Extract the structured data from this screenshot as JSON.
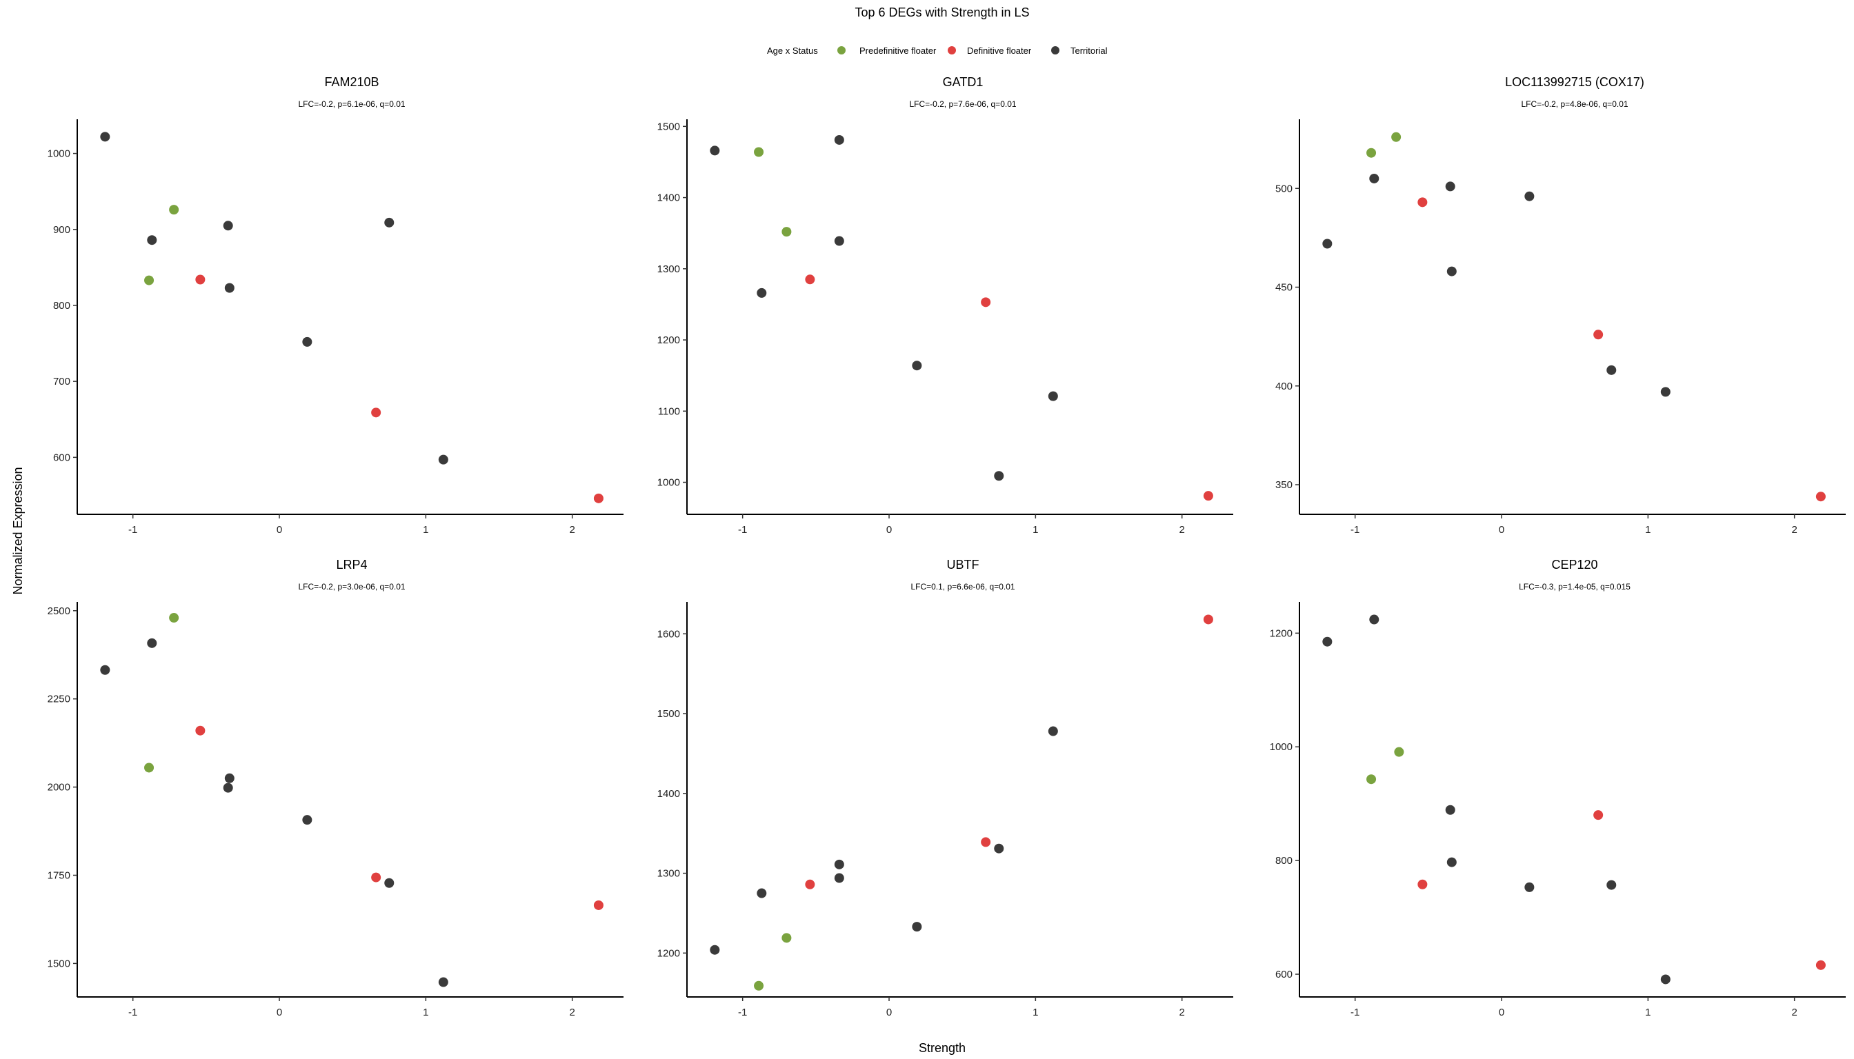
{
  "chart_data": {
    "type": "scatter",
    "title": "Top 6 DEGs with Strength in LS",
    "xlabel": "Strength",
    "ylabel": "Normalized Expression",
    "legend": {
      "title": "Age x Status",
      "placement": "top",
      "entries": [
        {
          "name": "Predefinitive floater",
          "color": "#7aa33f"
        },
        {
          "name": "Definitive floater",
          "color": "#e0403f"
        },
        {
          "name": "Territorial",
          "color": "#3a3a3a"
        }
      ]
    },
    "grid": false,
    "xlim": [
      -1.38,
      2.35
    ],
    "xticks": [
      -1,
      0,
      1,
      2
    ],
    "panels": [
      {
        "title": "FAM210B",
        "subtitle": "LFC=-0.2, p=6.1e-06, q=0.01",
        "ylim": [
          525,
          1045
        ],
        "yticks": [
          600,
          700,
          800,
          900,
          1000
        ],
        "points": [
          {
            "x": -1.19,
            "y": 1022,
            "group": "Territorial"
          },
          {
            "x": -0.72,
            "y": 926,
            "group": "Predefinitive floater"
          },
          {
            "x": -0.87,
            "y": 886,
            "group": "Territorial"
          },
          {
            "x": -0.35,
            "y": 905,
            "group": "Territorial"
          },
          {
            "x": 0.75,
            "y": 909,
            "group": "Territorial"
          },
          {
            "x": -0.89,
            "y": 833,
            "group": "Predefinitive floater"
          },
          {
            "x": -0.54,
            "y": 834,
            "group": "Definitive floater"
          },
          {
            "x": -0.34,
            "y": 823,
            "group": "Territorial"
          },
          {
            "x": 0.19,
            "y": 752,
            "group": "Territorial"
          },
          {
            "x": 0.66,
            "y": 659,
            "group": "Definitive floater"
          },
          {
            "x": 1.12,
            "y": 597,
            "group": "Territorial"
          },
          {
            "x": 2.18,
            "y": 546,
            "group": "Definitive floater"
          }
        ]
      },
      {
        "title": "GATD1",
        "subtitle": "LFC=-0.2, p=7.6e-06, q=0.01",
        "ylim": [
          955,
          1510
        ],
        "yticks": [
          1000,
          1100,
          1200,
          1300,
          1400,
          1500
        ],
        "points": [
          {
            "x": -1.19,
            "y": 1466,
            "group": "Territorial"
          },
          {
            "x": -0.89,
            "y": 1464,
            "group": "Predefinitive floater"
          },
          {
            "x": -0.34,
            "y": 1481,
            "group": "Territorial"
          },
          {
            "x": -0.7,
            "y": 1352,
            "group": "Predefinitive floater"
          },
          {
            "x": -0.34,
            "y": 1339,
            "group": "Territorial"
          },
          {
            "x": -0.54,
            "y": 1285,
            "group": "Definitive floater"
          },
          {
            "x": -0.87,
            "y": 1266,
            "group": "Territorial"
          },
          {
            "x": 0.66,
            "y": 1253,
            "group": "Definitive floater"
          },
          {
            "x": 0.19,
            "y": 1164,
            "group": "Territorial"
          },
          {
            "x": 1.12,
            "y": 1121,
            "group": "Territorial"
          },
          {
            "x": 0.75,
            "y": 1009,
            "group": "Territorial"
          },
          {
            "x": 2.18,
            "y": 981,
            "group": "Definitive floater"
          }
        ]
      },
      {
        "title": "LOC113992715 (COX17)",
        "subtitle": "LFC=-0.2, p=4.8e-06, q=0.01",
        "ylim": [
          335,
          535
        ],
        "yticks": [
          350,
          400,
          450,
          500
        ],
        "points": [
          {
            "x": -0.72,
            "y": 526,
            "group": "Predefinitive floater"
          },
          {
            "x": -0.89,
            "y": 518,
            "group": "Predefinitive floater"
          },
          {
            "x": -0.87,
            "y": 505,
            "group": "Territorial"
          },
          {
            "x": -0.35,
            "y": 501,
            "group": "Territorial"
          },
          {
            "x": 0.19,
            "y": 496,
            "group": "Territorial"
          },
          {
            "x": -0.54,
            "y": 493,
            "group": "Definitive floater"
          },
          {
            "x": -1.19,
            "y": 472,
            "group": "Territorial"
          },
          {
            "x": -0.34,
            "y": 458,
            "group": "Territorial"
          },
          {
            "x": 0.66,
            "y": 426,
            "group": "Definitive floater"
          },
          {
            "x": 0.75,
            "y": 408,
            "group": "Territorial"
          },
          {
            "x": 1.12,
            "y": 397,
            "group": "Territorial"
          },
          {
            "x": 2.18,
            "y": 344,
            "group": "Definitive floater"
          }
        ]
      },
      {
        "title": "LRP4",
        "subtitle": "LFC=-0.2, p=3.0e-06, q=0.01",
        "ylim": [
          1405,
          2525
        ],
        "yticks": [
          1500,
          1750,
          2000,
          2250,
          2500
        ],
        "points": [
          {
            "x": -0.72,
            "y": 2480,
            "group": "Predefinitive floater"
          },
          {
            "x": -0.87,
            "y": 2408,
            "group": "Territorial"
          },
          {
            "x": -1.19,
            "y": 2332,
            "group": "Territorial"
          },
          {
            "x": -0.54,
            "y": 2160,
            "group": "Definitive floater"
          },
          {
            "x": -0.89,
            "y": 2055,
            "group": "Predefinitive floater"
          },
          {
            "x": -0.34,
            "y": 2025,
            "group": "Territorial"
          },
          {
            "x": -0.35,
            "y": 1998,
            "group": "Territorial"
          },
          {
            "x": 0.19,
            "y": 1907,
            "group": "Territorial"
          },
          {
            "x": 0.66,
            "y": 1744,
            "group": "Definitive floater"
          },
          {
            "x": 0.75,
            "y": 1728,
            "group": "Territorial"
          },
          {
            "x": 2.18,
            "y": 1665,
            "group": "Definitive floater"
          },
          {
            "x": 1.12,
            "y": 1447,
            "group": "Territorial"
          }
        ]
      },
      {
        "title": "UBTF",
        "subtitle": "LFC=0.1, p=6.6e-06, q=0.01",
        "ylim": [
          1145,
          1640
        ],
        "yticks": [
          1200,
          1300,
          1400,
          1500,
          1600
        ],
        "points": [
          {
            "x": 2.18,
            "y": 1618,
            "group": "Definitive floater"
          },
          {
            "x": 1.12,
            "y": 1478,
            "group": "Territorial"
          },
          {
            "x": 0.66,
            "y": 1339,
            "group": "Definitive floater"
          },
          {
            "x": 0.75,
            "y": 1331,
            "group": "Territorial"
          },
          {
            "x": -0.34,
            "y": 1311,
            "group": "Territorial"
          },
          {
            "x": -0.34,
            "y": 1294,
            "group": "Territorial"
          },
          {
            "x": -0.54,
            "y": 1286,
            "group": "Definitive floater"
          },
          {
            "x": -0.87,
            "y": 1275,
            "group": "Territorial"
          },
          {
            "x": 0.19,
            "y": 1233,
            "group": "Territorial"
          },
          {
            "x": -0.7,
            "y": 1219,
            "group": "Predefinitive floater"
          },
          {
            "x": -1.19,
            "y": 1204,
            "group": "Territorial"
          },
          {
            "x": -0.89,
            "y": 1159,
            "group": "Predefinitive floater"
          }
        ]
      },
      {
        "title": "CEP120",
        "subtitle": "LFC=-0.3, p=1.4e-05, q=0.015",
        "ylim": [
          560,
          1255
        ],
        "yticks": [
          600,
          800,
          1000,
          1200
        ],
        "points": [
          {
            "x": -0.87,
            "y": 1224,
            "group": "Territorial"
          },
          {
            "x": -1.19,
            "y": 1185,
            "group": "Territorial"
          },
          {
            "x": -0.7,
            "y": 991,
            "group": "Predefinitive floater"
          },
          {
            "x": -0.89,
            "y": 943,
            "group": "Predefinitive floater"
          },
          {
            "x": -0.35,
            "y": 889,
            "group": "Territorial"
          },
          {
            "x": 0.66,
            "y": 880,
            "group": "Definitive floater"
          },
          {
            "x": -0.34,
            "y": 797,
            "group": "Territorial"
          },
          {
            "x": -0.54,
            "y": 758,
            "group": "Definitive floater"
          },
          {
            "x": 0.75,
            "y": 757,
            "group": "Territorial"
          },
          {
            "x": 0.19,
            "y": 753,
            "group": "Territorial"
          },
          {
            "x": 2.18,
            "y": 616,
            "group": "Definitive floater"
          },
          {
            "x": 1.12,
            "y": 591,
            "group": "Territorial"
          }
        ]
      }
    ]
  }
}
